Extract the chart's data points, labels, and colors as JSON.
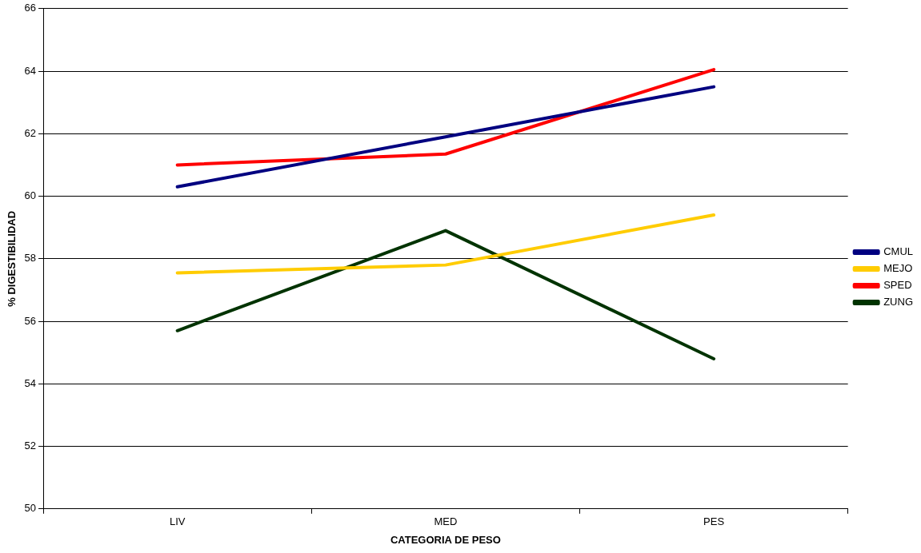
{
  "chart_data": {
    "type": "line",
    "xlabel": "CATEGORIA DE PESO",
    "ylabel": "% DIGESTIBILIDAD",
    "categories": [
      "LIV",
      "MED",
      "PES"
    ],
    "series": [
      {
        "name": "CMUL",
        "color": "#000080",
        "values": [
          60.3,
          61.9,
          63.5
        ]
      },
      {
        "name": "MEJO",
        "color": "#ffcc00",
        "values": [
          57.55,
          57.8,
          59.4
        ]
      },
      {
        "name": "SPED",
        "color": "#ff0000",
        "values": [
          61.0,
          61.35,
          64.05
        ]
      },
      {
        "name": "ZUNG",
        "color": "#003300",
        "values": [
          55.7,
          58.9,
          54.8
        ]
      }
    ],
    "ylim": [
      50,
      66
    ],
    "yticks": [
      50,
      52,
      54,
      56,
      58,
      60,
      62,
      64,
      66
    ],
    "grid": "y",
    "legend": "right",
    "marker": "none",
    "line_style": "solid"
  }
}
